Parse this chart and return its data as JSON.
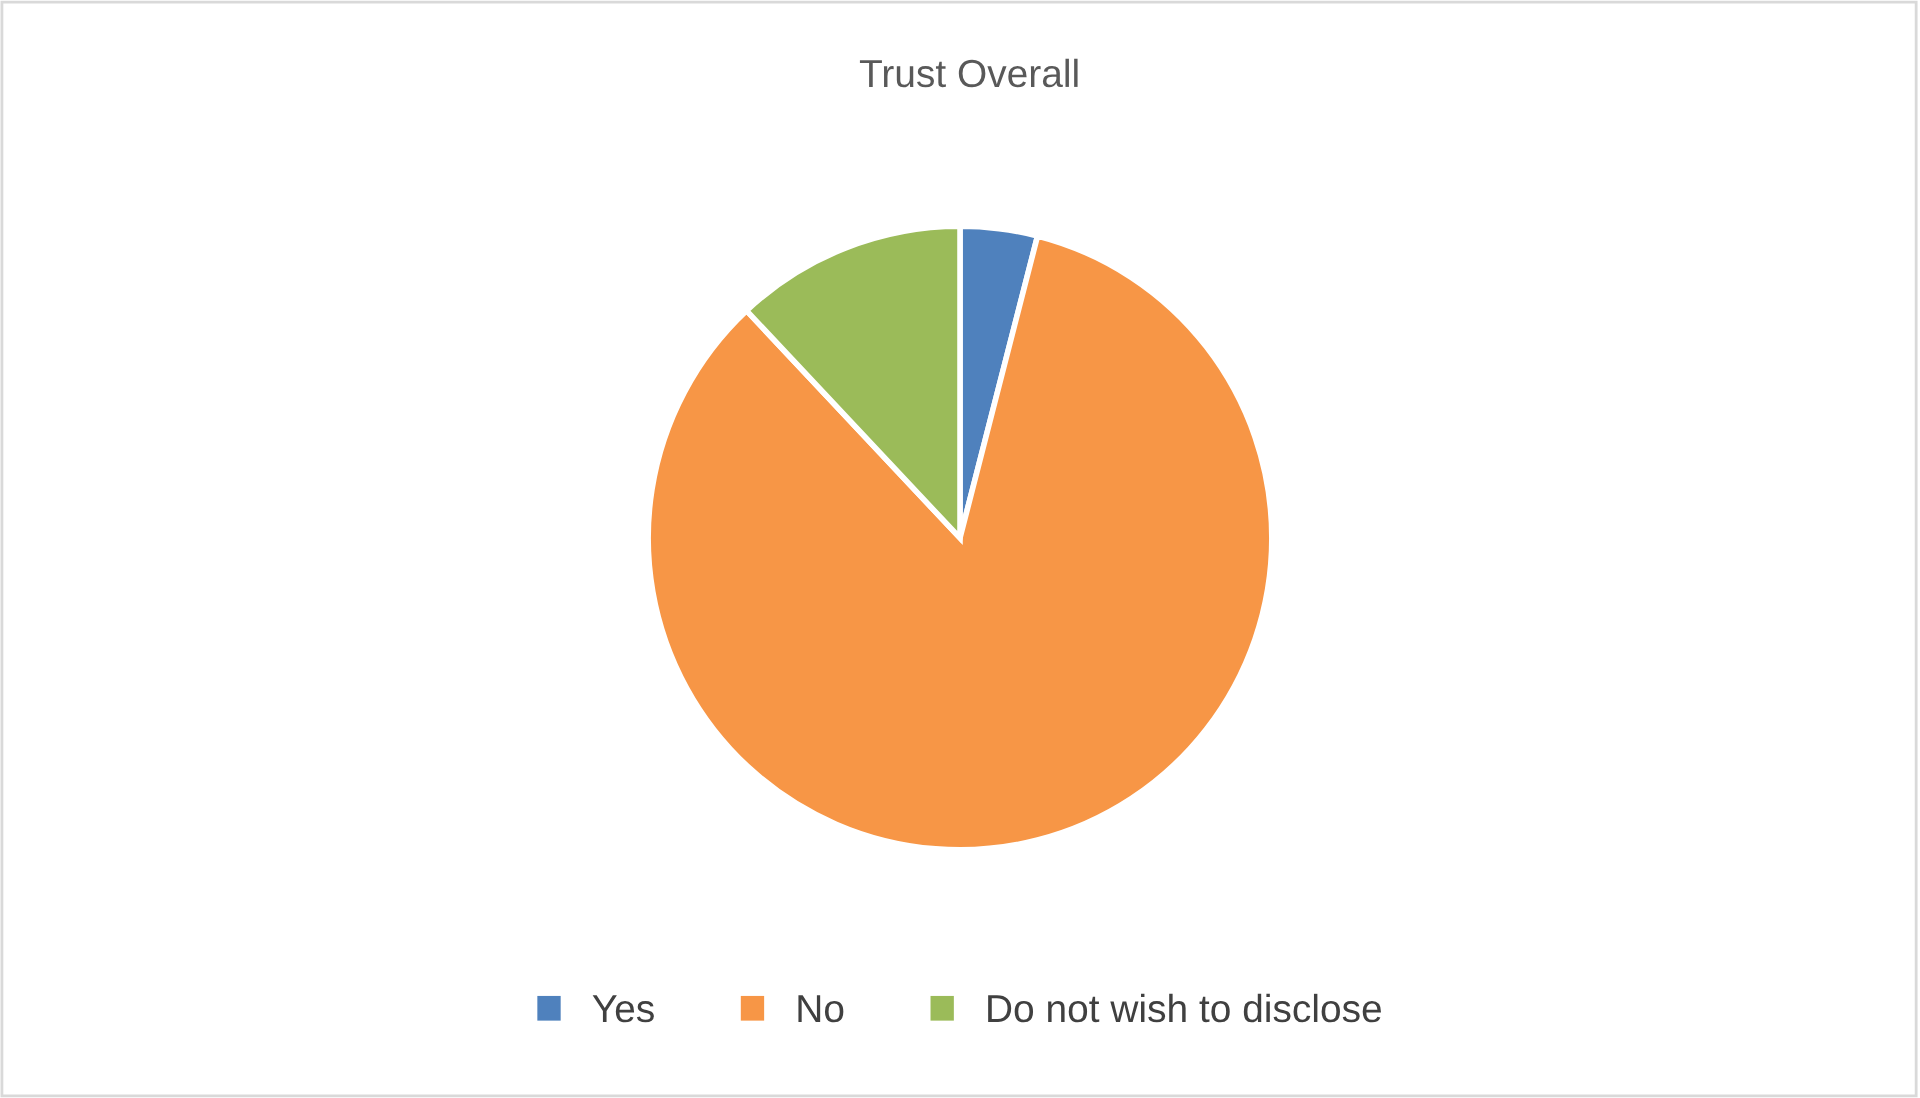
{
  "chart_data": {
    "type": "pie",
    "title": "Trust Overall",
    "categories": [
      "Yes",
      "No",
      "Do not wish to disclose"
    ],
    "values": [
      4,
      84,
      12
    ],
    "colors": [
      "#4f81bd",
      "#f79646",
      "#9bbb59"
    ],
    "legend": "bottom"
  }
}
